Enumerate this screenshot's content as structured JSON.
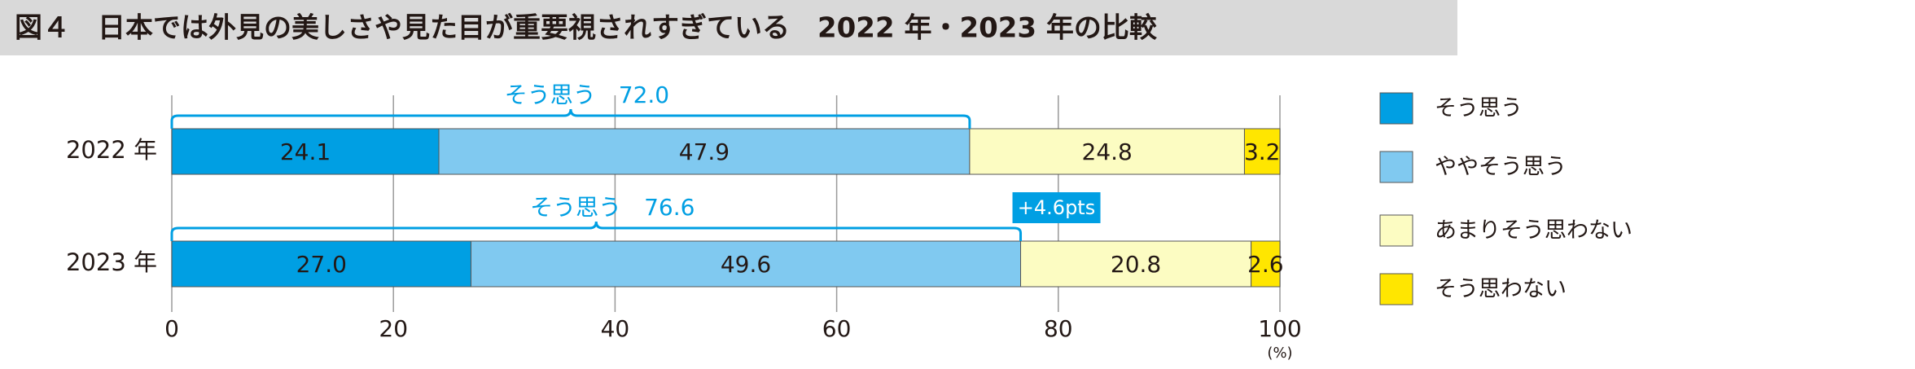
{
  "chart_data": {
    "type": "stacked-bar-horizontal",
    "title": "図４　日本では外見の美しさや見た目が重要視されすぎている　2022 年・2023 年の比較",
    "categories": [
      "2022 年",
      "2023 年"
    ],
    "series": [
      {
        "name": "そう思う",
        "color": "#009fe3",
        "values": [
          24.1,
          27.0
        ],
        "value_labels": [
          "24.1",
          "27.0"
        ]
      },
      {
        "name": "ややそう思う",
        "color": "#80c9f0",
        "values": [
          47.9,
          49.6
        ]
      },
      {
        "name": "あまりそう思わない",
        "color": "#fcfcc2",
        "values": [
          24.8,
          20.8
        ]
      },
      {
        "name": "そう思わない",
        "color": "#ffe600",
        "values": [
          3.2,
          2.6
        ]
      }
    ],
    "annotations": [
      "そう思う　72.0",
      "そう思う　76.6"
    ],
    "change_label": "+4.6pts",
    "xlim": [
      0,
      100
    ],
    "xticks": [
      0,
      20,
      40,
      60,
      80,
      100
    ],
    "x_unit": "(%)",
    "grid": true,
    "legend": "right"
  }
}
